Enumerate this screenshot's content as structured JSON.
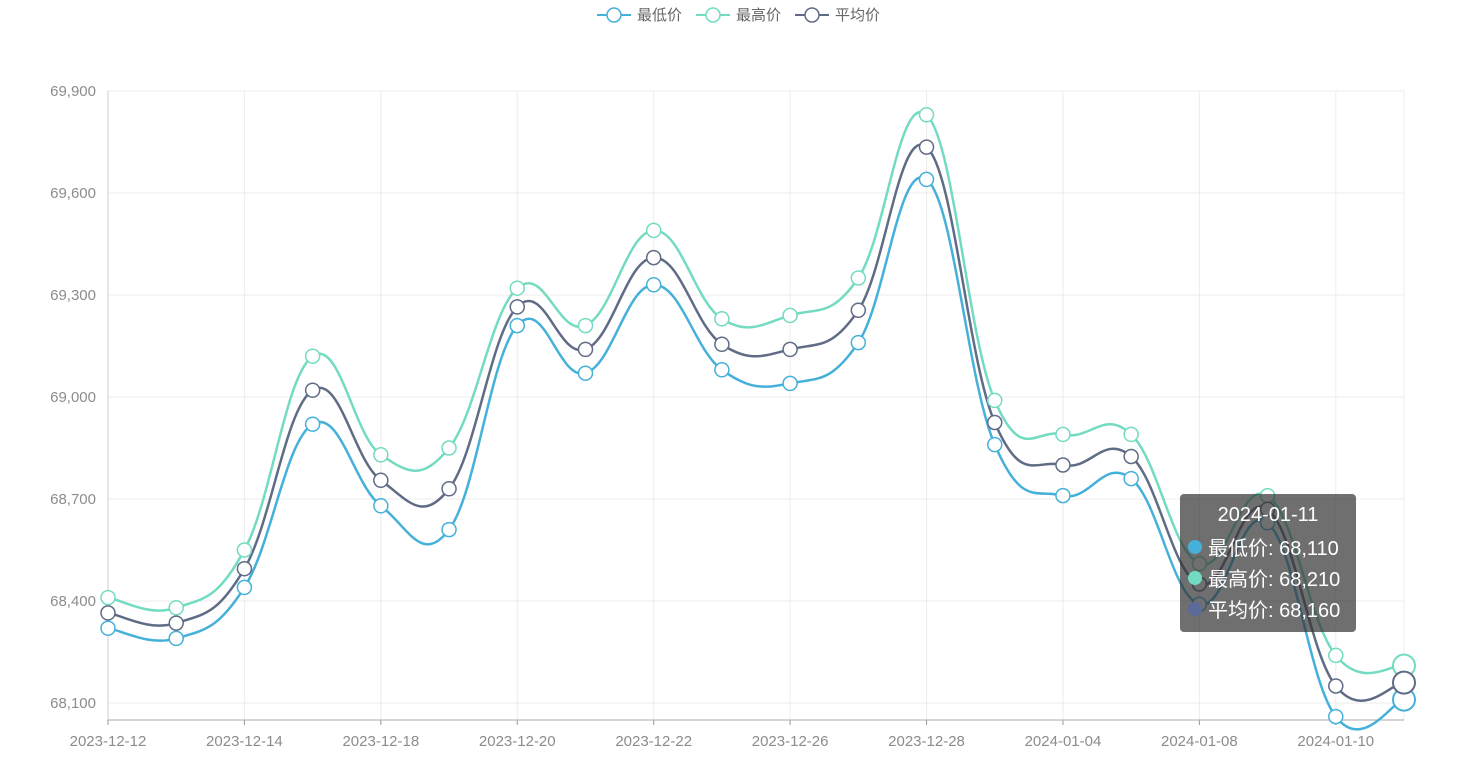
{
  "legend": [
    {
      "label": "最低价",
      "color": "#45b0d9"
    },
    {
      "label": "最高价",
      "color": "#73dbc2"
    },
    {
      "label": "平均价",
      "color": "#606b86"
    }
  ],
  "tooltip": {
    "title": "2024-01-11",
    "rows": [
      {
        "label": "最低价: 68,110",
        "color": "#45b0d9"
      },
      {
        "label": "最高价: 68,210",
        "color": "#73dbc2"
      },
      {
        "label": "平均价: 68,160",
        "color": "#606b86"
      }
    ]
  },
  "chart_data": {
    "type": "line",
    "smooth": true,
    "x": [
      "2023-12-12",
      "2023-12-13",
      "2023-12-14",
      "2023-12-15",
      "2023-12-18",
      "2023-12-19",
      "2023-12-20",
      "2023-12-21",
      "2023-12-22",
      "2023-12-25",
      "2023-12-26",
      "2023-12-27",
      "2023-12-28",
      "2023-12-29",
      "2024-01-04",
      "2024-01-05",
      "2024-01-08",
      "2024-01-09",
      "2024-01-10",
      "2024-01-11"
    ],
    "x_tick_labels": [
      "2023-12-12",
      "2023-12-14",
      "2023-12-18",
      "2023-12-20",
      "2023-12-22",
      "2023-12-26",
      "2023-12-28",
      "2024-01-04",
      "2024-01-08",
      "2024-01-10"
    ],
    "series": [
      {
        "name": "最低价",
        "color": "#45b0d9",
        "values": [
          68320,
          68290,
          68440,
          68920,
          68680,
          68610,
          69210,
          69070,
          69330,
          69080,
          69040,
          69160,
          69640,
          68860,
          68710,
          68760,
          68390,
          68630,
          68060,
          68110
        ]
      },
      {
        "name": "最高价",
        "color": "#73dbc2",
        "values": [
          68410,
          68380,
          68550,
          69120,
          68830,
          68850,
          69320,
          69210,
          69490,
          69230,
          69240,
          69350,
          69830,
          68990,
          68890,
          68890,
          68510,
          68710,
          68240,
          68210
        ]
      },
      {
        "name": "平均价",
        "color": "#606b86",
        "values": [
          68365,
          68335,
          68495,
          69020,
          68755,
          68730,
          69265,
          69140,
          69410,
          69155,
          69140,
          69255,
          69735,
          68925,
          68800,
          68825,
          68450,
          68670,
          68150,
          68160
        ]
      }
    ],
    "y_ticks": [
      68100,
      68400,
      68700,
      69000,
      69300,
      69600,
      69900
    ],
    "y_tick_labels": [
      "68,100",
      "68,400",
      "68,700",
      "69,000",
      "69,300",
      "69,600",
      "69,900"
    ],
    "ylim": [
      68050,
      69900
    ],
    "grid": true,
    "legend_position": "top-center",
    "highlighted_index": 19
  }
}
